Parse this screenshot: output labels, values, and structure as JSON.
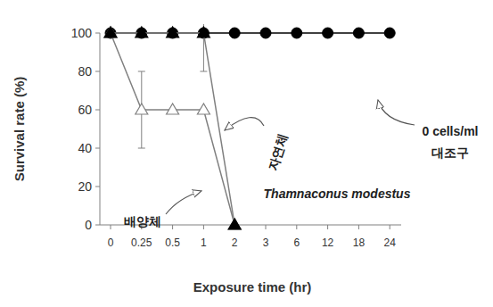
{
  "chart_data": {
    "type": "line",
    "x_label": "Exposure time (hr)",
    "y_label": "Survival rate (%)",
    "categories": [
      "0",
      "0.25",
      "0.5",
      "1",
      "2",
      "3",
      "6",
      "12",
      "18",
      "24"
    ],
    "series": [
      {
        "name": "대조구",
        "color": "#000000",
        "marker": "circle",
        "values": [
          100,
          100,
          100,
          100,
          100,
          100,
          100,
          100,
          100,
          100
        ]
      },
      {
        "name": "배양체",
        "color": "#808080",
        "marker": "triangle-open",
        "values": [
          100,
          60,
          60,
          60,
          0,
          null,
          null,
          null,
          null,
          null
        ],
        "errors": [
          0,
          20,
          0,
          0,
          0,
          null,
          null,
          null,
          null,
          null
        ]
      },
      {
        "name": "자연체",
        "color": "#808080",
        "marker": "triangle",
        "values": [
          100,
          100,
          100,
          100,
          0,
          null,
          null,
          null,
          null,
          null
        ],
        "errors": [
          0,
          0,
          0,
          20,
          0,
          null,
          null,
          null,
          null,
          null
        ]
      }
    ],
    "annotations": [
      "0 cells/ml",
      "대조구",
      "배양체",
      "자연체",
      "Thamnaconus modestus"
    ],
    "ylim": [
      0,
      100
    ],
    "yticks": [
      0,
      20,
      40,
      60,
      80,
      100
    ],
    "grid": false
  }
}
